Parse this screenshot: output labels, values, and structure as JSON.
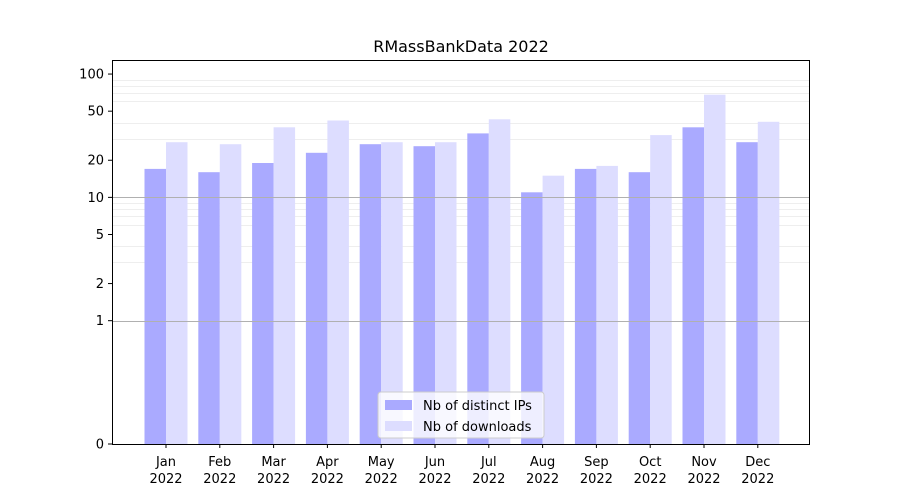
{
  "chart_data": {
    "type": "bar",
    "title": "RMassBankData 2022",
    "categories": [
      {
        "month": "Jan",
        "year": "2022"
      },
      {
        "month": "Feb",
        "year": "2022"
      },
      {
        "month": "Mar",
        "year": "2022"
      },
      {
        "month": "Apr",
        "year": "2022"
      },
      {
        "month": "May",
        "year": "2022"
      },
      {
        "month": "Jun",
        "year": "2022"
      },
      {
        "month": "Jul",
        "year": "2022"
      },
      {
        "month": "Aug",
        "year": "2022"
      },
      {
        "month": "Sep",
        "year": "2022"
      },
      {
        "month": "Oct",
        "year": "2022"
      },
      {
        "month": "Nov",
        "year": "2022"
      },
      {
        "month": "Dec",
        "year": "2022"
      }
    ],
    "series": [
      {
        "name": "Nb of distinct IPs",
        "color": "#aaaaff",
        "values": [
          17,
          16,
          19,
          23,
          27,
          26,
          33,
          11,
          17,
          16,
          37,
          28
        ]
      },
      {
        "name": "Nb of downloads",
        "color": "#ddddff",
        "values": [
          28,
          27,
          37,
          42,
          28,
          28,
          43,
          15,
          18,
          32,
          68,
          41
        ]
      }
    ],
    "yscale": "symlog",
    "yticks": [
      0,
      1,
      2,
      5,
      10,
      20,
      50,
      100
    ],
    "ylim": [
      0,
      130
    ],
    "grid": true,
    "legend_position": "bottom-center"
  }
}
